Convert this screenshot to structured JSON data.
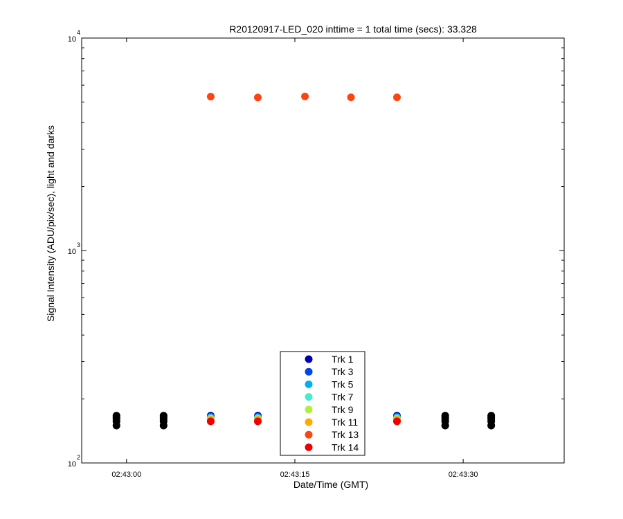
{
  "chart_data": {
    "type": "scatter",
    "title": "R20120917-LED_020 inttime = 1 total time (secs): 33.328",
    "xlabel": "Date/Time (GMT)",
    "ylabel": "Signal Intensity (ADU/pix/sec), light and darks",
    "yscale": "log",
    "ylim": [
      100,
      10000
    ],
    "xlim": [
      "02:42:56",
      "02:43:39"
    ],
    "x_ticks": [
      "02:43:00",
      "02:43:15",
      "02:43:30"
    ],
    "y_ticks": [
      {
        "base": "10",
        "exp": "2",
        "value": 100
      },
      {
        "base": "10",
        "exp": "3",
        "value": 1000
      },
      {
        "base": "10",
        "exp": "4",
        "value": 10000
      }
    ],
    "grid": false,
    "legend_position": "bottom-center",
    "series": [
      {
        "name": "Trk 1",
        "color": "#0000aa",
        "x": [
          "02:43:07.5",
          "02:43:11.7",
          "02:43:24.1"
        ],
        "y": [
          167,
          167,
          167
        ]
      },
      {
        "name": "Trk 3",
        "color": "#0044ee",
        "x": [
          "02:43:07.5",
          "02:43:11.7",
          "02:43:24.1"
        ],
        "y": [
          165,
          165,
          165
        ]
      },
      {
        "name": "Trk 5",
        "color": "#00b0f0",
        "x": [
          "02:43:07.5",
          "02:43:11.7",
          "02:43:24.1"
        ],
        "y": [
          164,
          164,
          164
        ]
      },
      {
        "name": "Trk 7",
        "color": "#44eec8",
        "x": [
          "02:43:07.5",
          "02:43:11.7",
          "02:43:24.1"
        ],
        "y": [
          162,
          162,
          162
        ]
      },
      {
        "name": "Trk 9",
        "color": "#b0ee44",
        "x": [
          "02:43:07.5",
          "02:43:11.7",
          "02:43:24.1"
        ],
        "y": [
          161,
          161,
          161
        ]
      },
      {
        "name": "Trk 11",
        "color": "#ffaa00",
        "x": [
          "02:43:07.5",
          "02:43:11.7",
          "02:43:24.1"
        ],
        "y": [
          160,
          160,
          160
        ]
      },
      {
        "name": "Trk 13",
        "color": "#ff4411",
        "x": [
          "02:43:07.5",
          "02:43:11.7",
          "02:43:15.9",
          "02:43:20.0",
          "02:43:24.1"
        ],
        "y": [
          5300,
          5250,
          5310,
          5260,
          5260
        ]
      },
      {
        "name": "Trk 14",
        "color": "#ee0000",
        "x": [
          "02:43:07.5",
          "02:43:11.7",
          "02:43:24.1"
        ],
        "y": [
          157,
          157,
          157
        ]
      },
      {
        "name": "",
        "color": "#000000",
        "x": [
          "02:42:59.1",
          "02:42:59.1",
          "02:42:59.1",
          "02:42:59.1",
          "02:42:59.1",
          "02:43:03.3",
          "02:43:03.3",
          "02:43:03.3",
          "02:43:03.3",
          "02:43:03.3",
          "02:43:28.4",
          "02:43:28.4",
          "02:43:28.4",
          "02:43:28.4",
          "02:43:28.4",
          "02:43:32.5",
          "02:43:32.5",
          "02:43:32.5",
          "02:43:32.5",
          "02:43:32.5"
        ],
        "y": [
          167,
          164,
          161,
          157,
          150,
          167,
          164,
          161,
          157,
          150,
          167,
          164,
          161,
          157,
          150,
          167,
          164,
          161,
          157,
          150
        ]
      }
    ]
  }
}
